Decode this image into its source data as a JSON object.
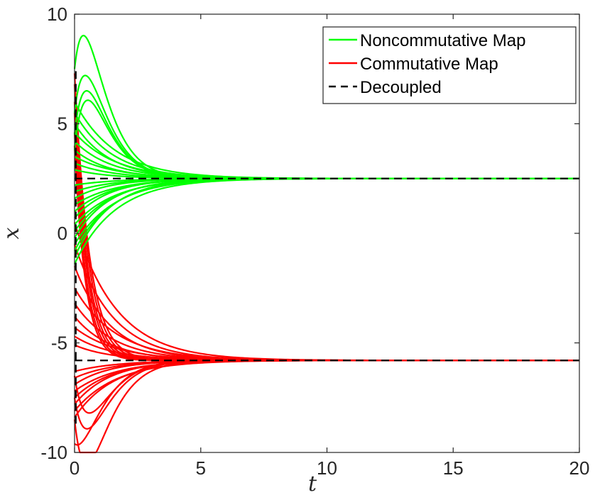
{
  "chart_data": {
    "type": "line",
    "title": "",
    "xlabel": "t",
    "ylabel": "x",
    "xlim": [
      0,
      20
    ],
    "ylim": [
      -10,
      10
    ],
    "xticks": [
      "0",
      "5",
      "10",
      "15",
      "20"
    ],
    "yticks": [
      "-10",
      "-5",
      "0",
      "5",
      "10"
    ],
    "grid": false,
    "legend_position": "top-right",
    "series": [
      {
        "name": "Noncommutative Map",
        "color": "#00ff00",
        "style": "solid",
        "equilibrium": 2.5,
        "decay_rate": 0.62,
        "initial_values": [
          6.0,
          5.5,
          5.0,
          4.6,
          4.2,
          3.8,
          3.5,
          3.2,
          2.9,
          2.2,
          1.9,
          1.6,
          1.3,
          1.0,
          0.7,
          0.4,
          0.1,
          -0.2,
          -0.5,
          -0.8,
          -1.1,
          -1.4
        ],
        "overshoot_peaks": [
          {
            "start": 7.5,
            "peak": 9.0,
            "peak_t": 0.3
          },
          {
            "start": 5.5,
            "peak": 7.1,
            "peak_t": 0.3
          },
          {
            "start": 4.5,
            "peak": 6.3,
            "peak_t": 0.3
          },
          {
            "start": 3.8,
            "peak": 5.9,
            "peak_t": 0.35
          }
        ]
      },
      {
        "name": "Commutative Map",
        "color": "#ff0000",
        "style": "solid",
        "equilibrium": -5.8,
        "decay_rate": 0.6,
        "initial_values": [
          0.5,
          -0.5,
          -1.5,
          -2.5,
          -3.2,
          -3.8,
          -4.3,
          -4.7,
          -5.1,
          -6.3,
          -6.6,
          -6.9,
          -7.2,
          -7.5,
          -7.8,
          -8.1,
          -8.4
        ],
        "overshoot_dips": [
          {
            "start": -8.5,
            "dip": -9.9,
            "dip_t": 0.9
          },
          {
            "start": -9.6,
            "dip": -9.2,
            "dip_t": 0.5
          },
          {
            "start": -7.5,
            "dip": -8.8,
            "dip_t": 0.7
          },
          {
            "start": -6.5,
            "dip": -8.1,
            "dip_t": 0.8
          }
        ],
        "crossing_starts": [
          7.3,
          6.8,
          6.0,
          5.5,
          4.6,
          4.0
        ]
      },
      {
        "name": "Decoupled",
        "color": "#000000",
        "style": "dashed",
        "levels": [
          2.5,
          -5.8
        ]
      }
    ]
  }
}
